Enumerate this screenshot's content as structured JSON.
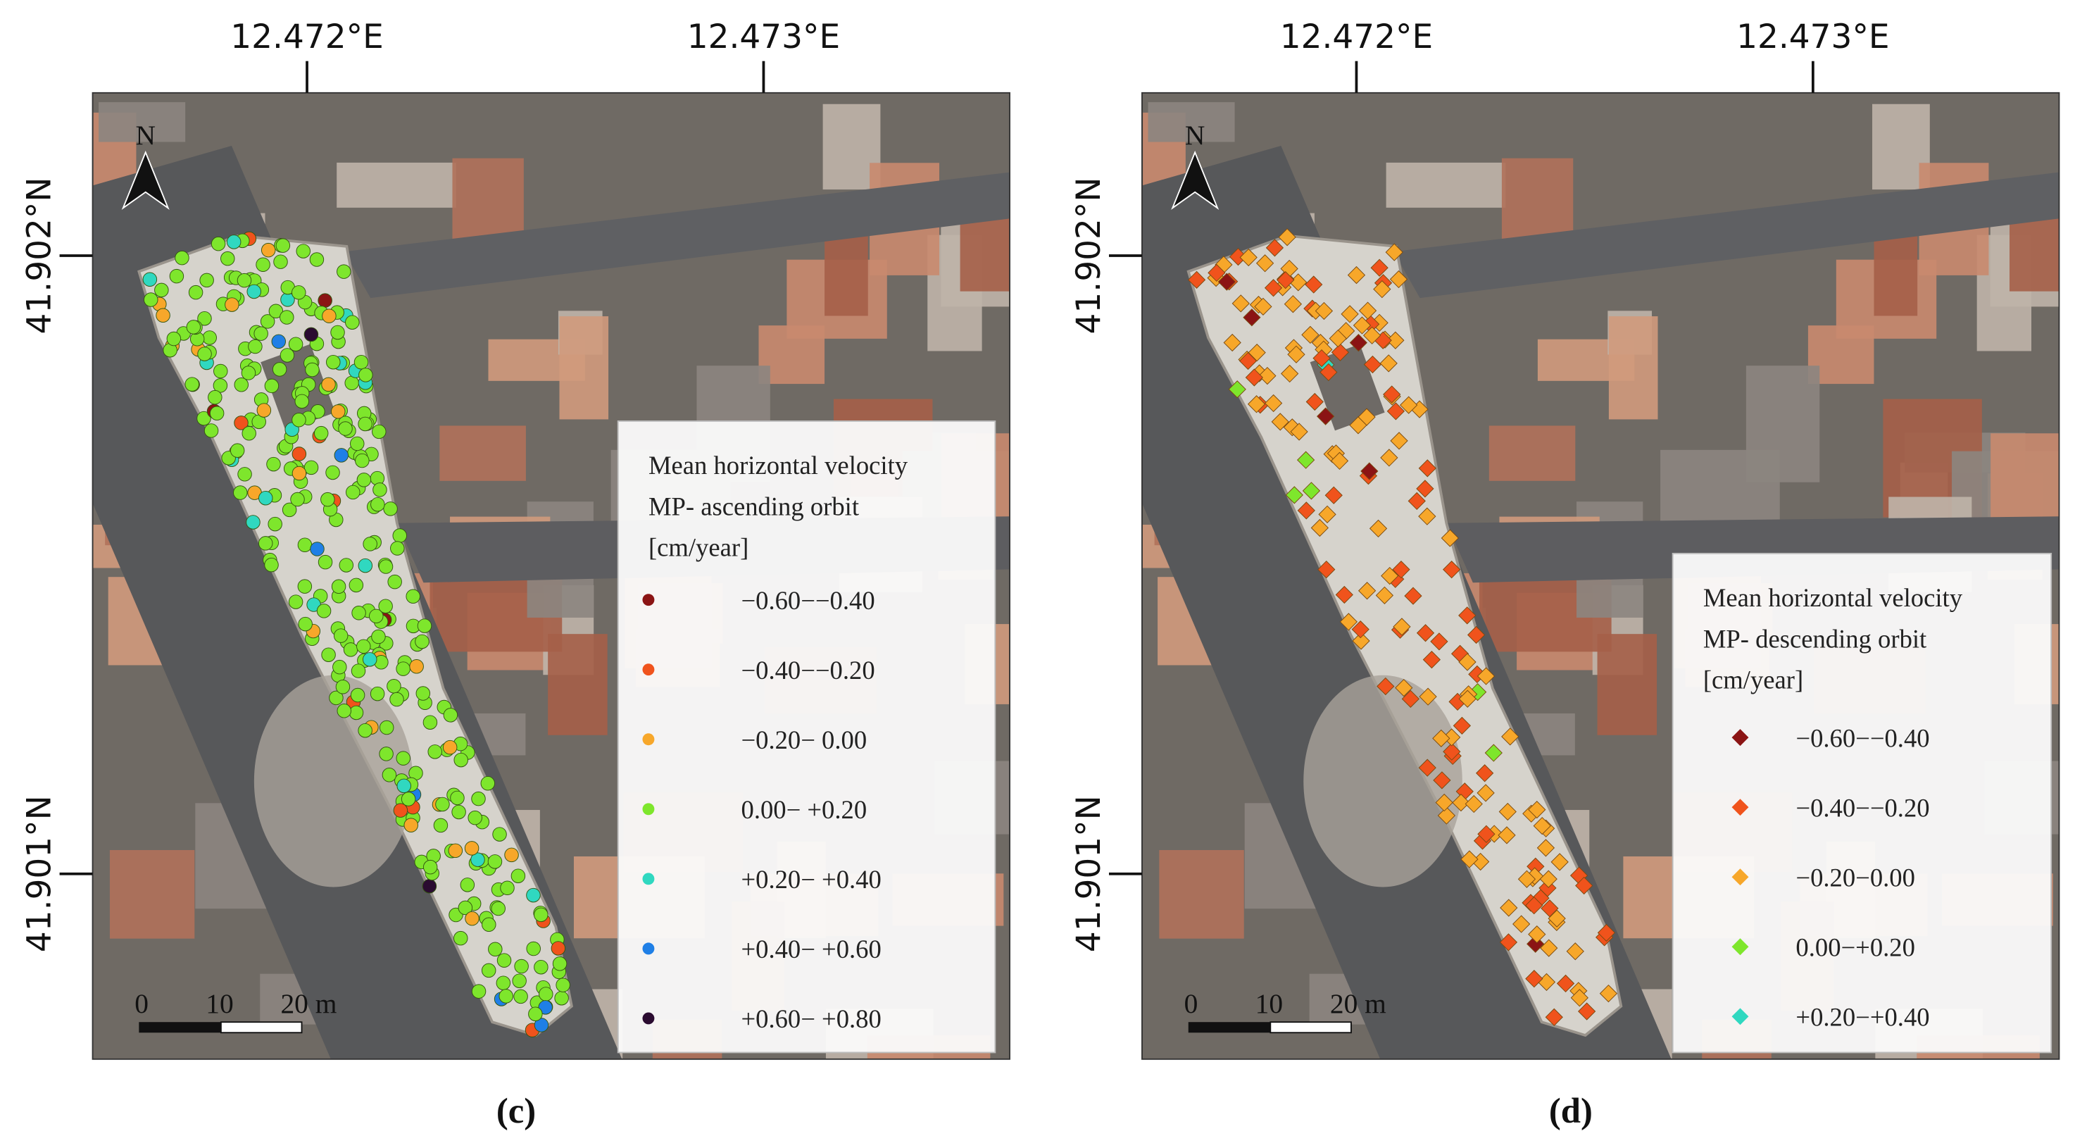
{
  "panels": [
    {
      "caption": "(c)",
      "lon_labels": [
        "12.472°E",
        "12.473°E"
      ],
      "lat_labels": [
        "41.902°N",
        "41.901°N"
      ],
      "north": "N",
      "scale_labels": [
        "0",
        "10",
        "20 m"
      ],
      "marker": "circle",
      "legend": {
        "title": [
          "Mean horizontal velocity",
          "MP- ascending orbit",
          "[cm/year]"
        ],
        "items": [
          {
            "label": "−0.60−−0.40",
            "color": "#8b1414"
          },
          {
            "label": "−0.40−−0.20",
            "color": "#f0531c"
          },
          {
            "label": "−0.20− 0.00",
            "color": "#f7a72a"
          },
          {
            "label": "0.00− +0.20",
            "color": "#7ee62c"
          },
          {
            "label": "+0.20− +0.40",
            "color": "#30d8c0"
          },
          {
            "label": "+0.40− +0.60",
            "color": "#1f7fe6"
          },
          {
            "label": "+0.60− +0.80",
            "color": "#2a0b30"
          }
        ]
      }
    },
    {
      "caption": "(d)",
      "lon_labels": [
        "12.472°E",
        "12.473°E"
      ],
      "lat_labels": [
        "41.902°N",
        "41.901°N"
      ],
      "north": "N",
      "scale_labels": [
        "0",
        "10",
        "20 m"
      ],
      "marker": "diamond",
      "legend": {
        "title": [
          "Mean horizontal velocity",
          "MP- descending orbit",
          "[cm/year]"
        ],
        "items": [
          {
            "label": "−0.60−−0.40",
            "color": "#8b1414"
          },
          {
            "label": "−0.40−−0.20",
            "color": "#f0531c"
          },
          {
            "label": "−0.20−0.00",
            "color": "#f7a72a"
          },
          {
            "label": "0.00−+0.20",
            "color": "#7ee62c"
          },
          {
            "label": "+0.20−+0.40",
            "color": "#30d8c0"
          }
        ]
      }
    }
  ]
}
